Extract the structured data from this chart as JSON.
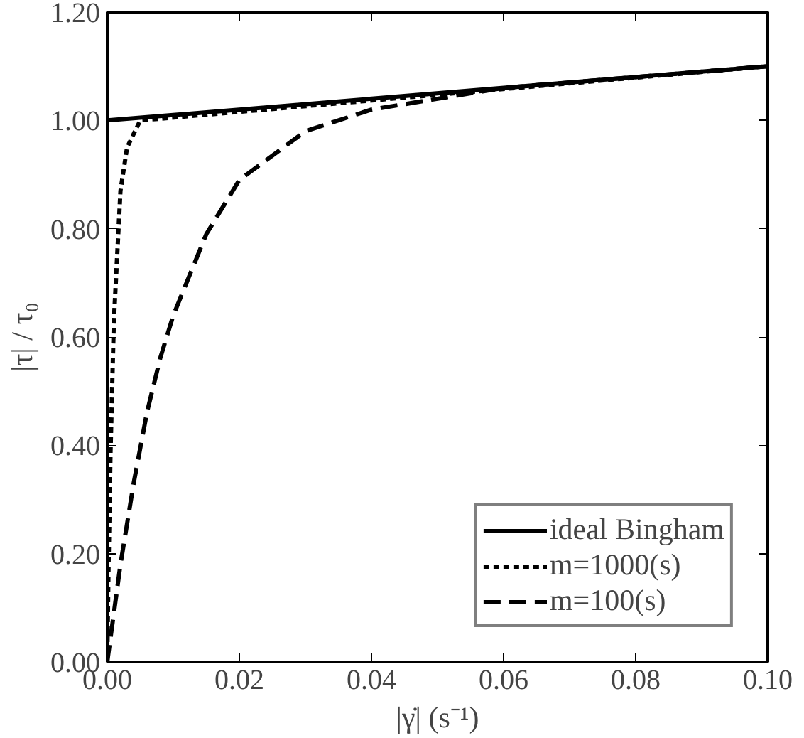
{
  "chart_data": {
    "type": "line",
    "xlabel": "|γ̇| (s⁻¹)",
    "ylabel": "|τ| / τ₀",
    "xlim": [
      0,
      0.1
    ],
    "ylim": [
      0,
      1.2
    ],
    "xticks": [
      {
        "value": 0,
        "label": "0.00"
      },
      {
        "value": 0.02,
        "label": "0.02"
      },
      {
        "value": 0.04,
        "label": "0.04"
      },
      {
        "value": 0.06,
        "label": "0.06"
      },
      {
        "value": 0.08,
        "label": "0.08"
      },
      {
        "value": 0.1,
        "label": "0.10"
      }
    ],
    "yticks": [
      {
        "value": 0,
        "label": "0.00"
      },
      {
        "value": 0.2,
        "label": "0.20"
      },
      {
        "value": 0.4,
        "label": "0.40"
      },
      {
        "value": 0.6,
        "label": "0.60"
      },
      {
        "value": 0.8,
        "label": "0.80"
      },
      {
        "value": 1.0,
        "label": "1.00"
      },
      {
        "value": 1.2,
        "label": "1.20"
      }
    ],
    "grid": false,
    "legend": "bottom right",
    "marker": "none",
    "series": [
      {
        "name": "ideal Bingham",
        "color": "#000000",
        "line_style": "solid",
        "x": [
          0,
          0.1
        ],
        "values": [
          1.0,
          1.1
        ]
      },
      {
        "name": "m=1000(s)",
        "color": "#000000",
        "line_style": "dotted",
        "x": [
          0,
          0.0002,
          0.0005,
          0.001,
          0.002,
          0.003,
          0.005,
          0.1
        ],
        "values": [
          0,
          0.18,
          0.39,
          0.63,
          0.87,
          0.95,
          1.0,
          1.1
        ]
      },
      {
        "name": "m=100(s)",
        "color": "#000000",
        "line_style": "dashed",
        "x": [
          0,
          0.002,
          0.004,
          0.006,
          0.008,
          0.01,
          0.015,
          0.02,
          0.03,
          0.04,
          0.05,
          0.06,
          0.08,
          0.1
        ],
        "values": [
          0,
          0.18,
          0.33,
          0.46,
          0.56,
          0.64,
          0.79,
          0.89,
          0.98,
          1.02,
          1.04,
          1.06,
          1.08,
          1.1
        ]
      }
    ]
  }
}
